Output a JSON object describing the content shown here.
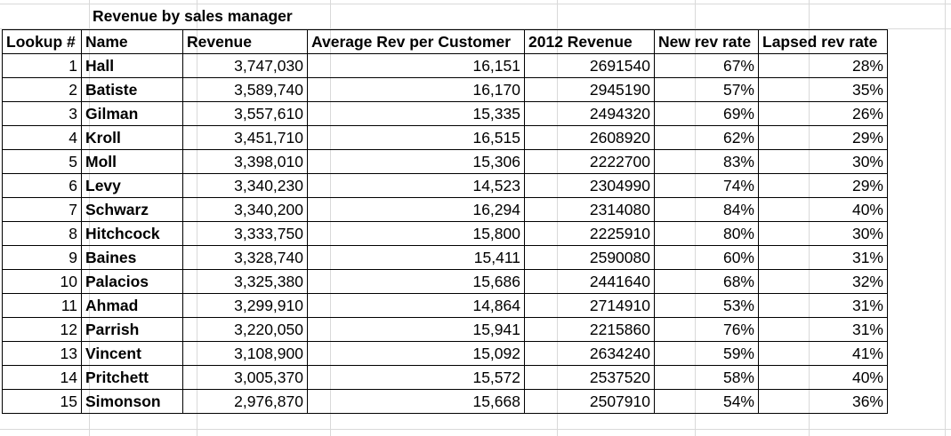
{
  "title": "Revenue by sales manager",
  "headers": [
    "Lookup #",
    "Name",
    "Revenue",
    "Average Rev per Customer",
    "2012 Revenue",
    "New rev rate",
    "Lapsed rev rate"
  ],
  "rows": [
    {
      "lookup": "1",
      "name": "Hall",
      "revenue": "3,747,030",
      "avg": "16,151",
      "rev2012": "2691540",
      "new_rate": "67%",
      "lapsed_rate": "28%"
    },
    {
      "lookup": "2",
      "name": "Batiste",
      "revenue": "3,589,740",
      "avg": "16,170",
      "rev2012": "2945190",
      "new_rate": "57%",
      "lapsed_rate": "35%"
    },
    {
      "lookup": "3",
      "name": "Gilman",
      "revenue": "3,557,610",
      "avg": "15,335",
      "rev2012": "2494320",
      "new_rate": "69%",
      "lapsed_rate": "26%"
    },
    {
      "lookup": "4",
      "name": "Kroll",
      "revenue": "3,451,710",
      "avg": "16,515",
      "rev2012": "2608920",
      "new_rate": "62%",
      "lapsed_rate": "29%"
    },
    {
      "lookup": "5",
      "name": "Moll",
      "revenue": "3,398,010",
      "avg": "15,306",
      "rev2012": "2222700",
      "new_rate": "83%",
      "lapsed_rate": "30%"
    },
    {
      "lookup": "6",
      "name": "Levy",
      "revenue": "3,340,230",
      "avg": "14,523",
      "rev2012": "2304990",
      "new_rate": "74%",
      "lapsed_rate": "29%"
    },
    {
      "lookup": "7",
      "name": "Schwarz",
      "revenue": "3,340,200",
      "avg": "16,294",
      "rev2012": "2314080",
      "new_rate": "84%",
      "lapsed_rate": "40%"
    },
    {
      "lookup": "8",
      "name": "Hitchcock",
      "revenue": "3,333,750",
      "avg": "15,800",
      "rev2012": "2225910",
      "new_rate": "80%",
      "lapsed_rate": "30%"
    },
    {
      "lookup": "9",
      "name": "Baines",
      "revenue": "3,328,740",
      "avg": "15,411",
      "rev2012": "2590080",
      "new_rate": "60%",
      "lapsed_rate": "31%"
    },
    {
      "lookup": "10",
      "name": "Palacios",
      "revenue": "3,325,380",
      "avg": "15,686",
      "rev2012": "2441640",
      "new_rate": "68%",
      "lapsed_rate": "32%"
    },
    {
      "lookup": "11",
      "name": "Ahmad",
      "revenue": "3,299,910",
      "avg": "14,864",
      "rev2012": "2714910",
      "new_rate": "53%",
      "lapsed_rate": "31%"
    },
    {
      "lookup": "12",
      "name": "Parrish",
      "revenue": "3,220,050",
      "avg": "15,941",
      "rev2012": "2215860",
      "new_rate": "76%",
      "lapsed_rate": "31%"
    },
    {
      "lookup": "13",
      "name": "Vincent",
      "revenue": "3,108,900",
      "avg": "15,092",
      "rev2012": "2634240",
      "new_rate": "59%",
      "lapsed_rate": "41%"
    },
    {
      "lookup": "14",
      "name": "Pritchett",
      "revenue": "3,005,370",
      "avg": "15,572",
      "rev2012": "2537520",
      "new_rate": "58%",
      "lapsed_rate": "40%"
    },
    {
      "lookup": "15",
      "name": "Simonson",
      "revenue": "2,976,870",
      "avg": "15,668",
      "rev2012": "2507910",
      "new_rate": "54%",
      "lapsed_rate": "36%"
    }
  ]
}
